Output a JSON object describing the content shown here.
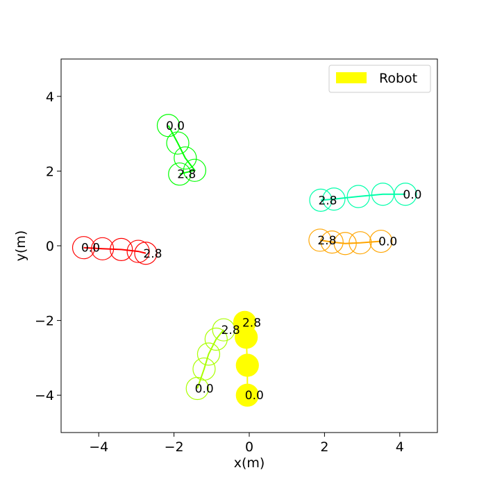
{
  "chart_data": {
    "type": "scatter",
    "xlabel": "x(m)",
    "ylabel": "y(m)",
    "xlim": [
      -5,
      5
    ],
    "ylim": [
      -5,
      5
    ],
    "x_ticks": [
      -4,
      -2,
      0,
      2,
      4
    ],
    "y_ticks": [
      -4,
      -2,
      0,
      2,
      4
    ],
    "x_tick_labels": [
      "−4",
      "−2",
      "0",
      "2",
      "4"
    ],
    "y_tick_labels": [
      "−4",
      "−2",
      "0",
      "2",
      "4"
    ],
    "grid": false,
    "legend": {
      "position": "top-right",
      "label": "Robot",
      "color": "#ffff00"
    },
    "robot": {
      "name": "Robot",
      "color": "#ffff00",
      "filled": true,
      "points": [
        {
          "x": -0.05,
          "y": -4.0
        },
        {
          "x": -0.05,
          "y": -3.2
        },
        {
          "x": -0.08,
          "y": -2.45
        },
        {
          "x": -0.12,
          "y": -2.05
        }
      ],
      "start_label": "0.0",
      "end_label": "2.8"
    },
    "agents": [
      {
        "color": "#00ff00",
        "points": [
          {
            "x": -2.15,
            "y": 3.22
          },
          {
            "x": -1.9,
            "y": 2.75
          },
          {
            "x": -1.7,
            "y": 2.35
          },
          {
            "x": -1.45,
            "y": 2.02
          },
          {
            "x": -1.85,
            "y": 1.92
          }
        ],
        "start_label": "0.0",
        "end_label": "2.8"
      },
      {
        "color": "#00ffaa",
        "points": [
          {
            "x": 4.15,
            "y": 1.38
          },
          {
            "x": 3.55,
            "y": 1.38
          },
          {
            "x": 2.9,
            "y": 1.32
          },
          {
            "x": 2.25,
            "y": 1.25
          },
          {
            "x": 1.9,
            "y": 1.22
          }
        ],
        "start_label": "0.0",
        "end_label": "2.8"
      },
      {
        "color": "#ffa500",
        "points": [
          {
            "x": 3.5,
            "y": 0.12
          },
          {
            "x": 2.95,
            "y": 0.08
          },
          {
            "x": 2.55,
            "y": 0.06
          },
          {
            "x": 2.2,
            "y": 0.1
          },
          {
            "x": 1.88,
            "y": 0.15
          }
        ],
        "start_label": "0.0",
        "end_label": "2.8"
      },
      {
        "color": "#ff0000",
        "points": [
          {
            "x": -4.4,
            "y": -0.05
          },
          {
            "x": -3.9,
            "y": -0.08
          },
          {
            "x": -3.4,
            "y": -0.1
          },
          {
            "x": -2.95,
            "y": -0.15
          },
          {
            "x": -2.75,
            "y": -0.2
          }
        ],
        "start_label": "0.0",
        "end_label": "2.8"
      },
      {
        "color": "#aaff00",
        "points": [
          {
            "x": -1.38,
            "y": -3.82
          },
          {
            "x": -1.2,
            "y": -3.3
          },
          {
            "x": -1.08,
            "y": -2.9
          },
          {
            "x": -0.88,
            "y": -2.5
          },
          {
            "x": -0.68,
            "y": -2.25
          }
        ],
        "start_label": "0.0",
        "end_label": "2.8"
      }
    ]
  }
}
